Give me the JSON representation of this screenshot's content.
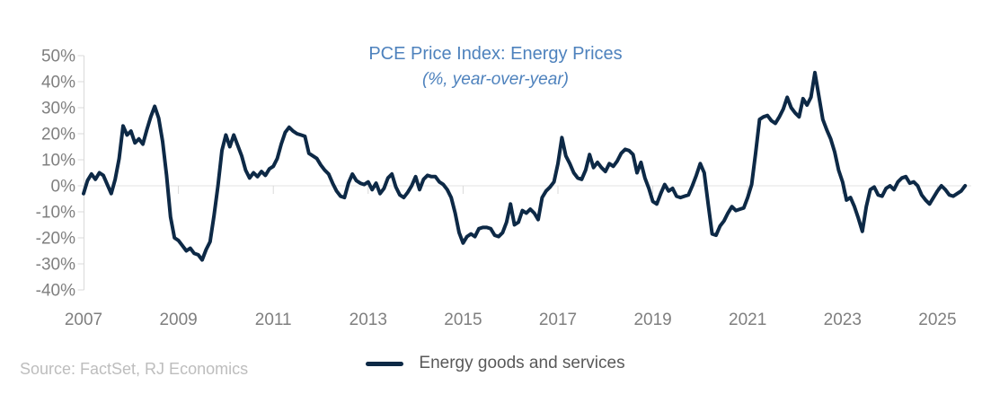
{
  "chart_data": {
    "type": "line",
    "title": "PCE Price Index: Energy Prices",
    "subtitle": "(%, year-over-year)",
    "source": "Source: FactSet, RJ Economics",
    "unit": "percent, year-over-year",
    "frequency": "monthly",
    "x_start": "2007-01",
    "x_end": "2025-08",
    "x_tick_labels": [
      "2007",
      "2009",
      "2011",
      "2013",
      "2015",
      "2017",
      "2019",
      "2021",
      "2023",
      "2025"
    ],
    "y_ticks": [
      50,
      40,
      30,
      20,
      10,
      0,
      -10,
      -20,
      -30,
      -40
    ],
    "y_tick_format": "{value}%",
    "ylim": [
      -40,
      50
    ],
    "grid": "zero-line-only",
    "legend_position": "bottom-center",
    "legend": [
      {
        "name": "Energy goods and services",
        "color": "#0d2946"
      }
    ],
    "series": [
      {
        "name": "Energy goods and services",
        "color": "#0d2946",
        "values_by_year": {
          "2007": [
            -3.0,
            2.0,
            4.5,
            2.5,
            5.0,
            4.0,
            0.5,
            -3.0,
            2.5,
            10.5,
            23.0,
            19.5
          ],
          "2008": [
            21.0,
            16.5,
            18.0,
            16.0,
            21.5,
            26.5,
            30.5,
            26.0,
            17.0,
            4.0,
            -12.0,
            -20.0
          ],
          "2009": [
            -21.0,
            -23.0,
            -25.0,
            -24.0,
            -26.0,
            -26.5,
            -28.5,
            -24.5,
            -21.5,
            -11.5,
            0.0,
            13.5
          ],
          "2010": [
            19.5,
            15.0,
            19.5,
            15.5,
            11.5,
            6.0,
            3.0,
            5.0,
            3.5,
            5.5,
            4.0,
            6.5
          ],
          "2011": [
            7.5,
            10.5,
            16.0,
            20.5,
            22.5,
            21.0,
            20.0,
            19.5,
            19.0,
            12.5,
            11.5,
            10.5
          ],
          "2012": [
            8.0,
            6.0,
            4.5,
            1.0,
            -2.0,
            -4.0,
            -4.5,
            1.0,
            4.5,
            2.0,
            1.0,
            0.5
          ],
          "2013": [
            1.5,
            -1.5,
            1.0,
            -3.0,
            -1.0,
            3.0,
            4.5,
            -0.5,
            -3.5,
            -4.5,
            -2.5,
            0.0
          ],
          "2014": [
            3.5,
            -1.5,
            2.5,
            4.0,
            3.5,
            3.5,
            1.5,
            0.5,
            -1.5,
            -4.5,
            -10.5,
            -18.0
          ],
          "2015": [
            -22.0,
            -19.5,
            -18.5,
            -19.5,
            -16.5,
            -16.0,
            -16.0,
            -16.5,
            -19.0,
            -19.5,
            -18.0,
            -14.0
          ],
          "2016": [
            -7.0,
            -15.0,
            -14.0,
            -9.5,
            -10.5,
            -9.0,
            -10.5,
            -13.0,
            -4.5,
            -2.0,
            -0.5,
            1.5
          ],
          "2017": [
            8.5,
            18.5,
            11.5,
            8.5,
            5.0,
            3.0,
            2.5,
            6.0,
            12.0,
            7.0,
            9.0,
            7.0
          ],
          "2018": [
            5.5,
            8.5,
            7.5,
            9.5,
            12.5,
            14.0,
            13.5,
            12.0,
            5.0,
            9.0,
            3.0,
            -1.0
          ],
          "2019": [
            -6.0,
            -7.0,
            -3.0,
            0.5,
            -2.0,
            -1.0,
            -4.0,
            -4.5,
            -4.0,
            -3.5,
            0.0,
            4.0
          ],
          "2020": [
            8.5,
            5.0,
            -7.0,
            -18.5,
            -19.0,
            -15.5,
            -13.5,
            -10.5,
            -8.0,
            -9.5,
            -9.0,
            -8.5
          ],
          "2021": [
            -4.5,
            0.5,
            12.5,
            25.5,
            26.5,
            27.0,
            25.0,
            24.0,
            26.5,
            29.5,
            34.0,
            30.0
          ],
          "2022": [
            28.0,
            26.5,
            33.5,
            31.0,
            34.0,
            43.5,
            34.5,
            25.5,
            21.5,
            18.0,
            13.0,
            6.0
          ],
          "2023": [
            1.5,
            -5.5,
            -4.5,
            -8.0,
            -12.5,
            -17.5,
            -8.0,
            -1.5,
            -0.5,
            -3.5,
            -4.0,
            -1.0
          ],
          "2024": [
            0.0,
            -1.5,
            1.5,
            3.0,
            3.5,
            1.0,
            1.5,
            0.0,
            -3.5,
            -5.5,
            -7.0,
            -4.5
          ],
          "2025": [
            -2.0,
            0.0,
            -1.5,
            -3.5,
            -4.0,
            -3.0,
            -2.0,
            0.0
          ]
        }
      }
    ],
    "colors": {
      "line": "#0d2946",
      "title": "#4e82bd",
      "axis_labels": "#7f7f7f",
      "legend_text": "#595959",
      "source_text": "#bdbdbd",
      "axis_lines": "#d9d9d9"
    }
  }
}
